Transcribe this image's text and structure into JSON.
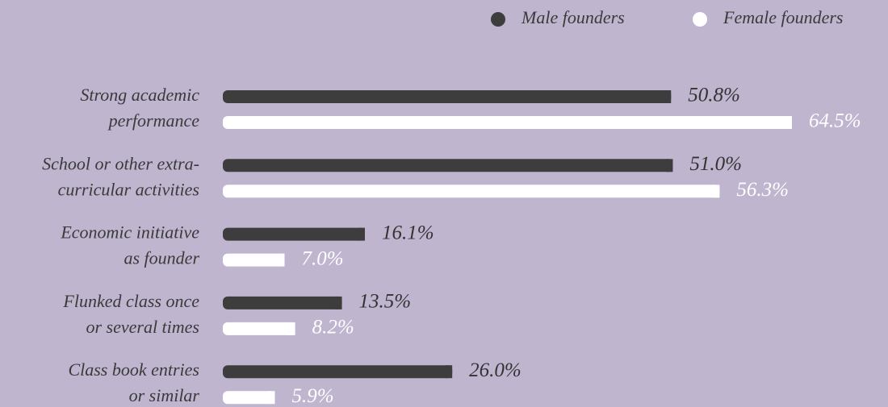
{
  "chart_data": {
    "type": "bar",
    "orientation": "horizontal",
    "categories": [
      [
        "Strong academic",
        "performance"
      ],
      [
        "School or other extra-",
        "curricular activities"
      ],
      [
        "Economic initiative",
        "as founder"
      ],
      [
        "Flunked class once",
        "or several times"
      ],
      [
        "Class book entries",
        "or similar"
      ]
    ],
    "series": [
      {
        "name": "Male founders",
        "color": "#3d3d3d",
        "values": [
          50.8,
          51.0,
          16.1,
          13.5,
          26.0
        ],
        "value_labels": [
          "50.8%",
          "51.0%",
          "16.1%",
          "13.5%",
          "26.0%"
        ]
      },
      {
        "name": "Female founders",
        "color": "#ffffff",
        "values": [
          64.5,
          56.3,
          7.0,
          8.2,
          5.9
        ],
        "value_labels": [
          "64.5%",
          "56.3%",
          "7.0%",
          "8.2%",
          "5.9%"
        ]
      }
    ],
    "legend": "top-right"
  }
}
